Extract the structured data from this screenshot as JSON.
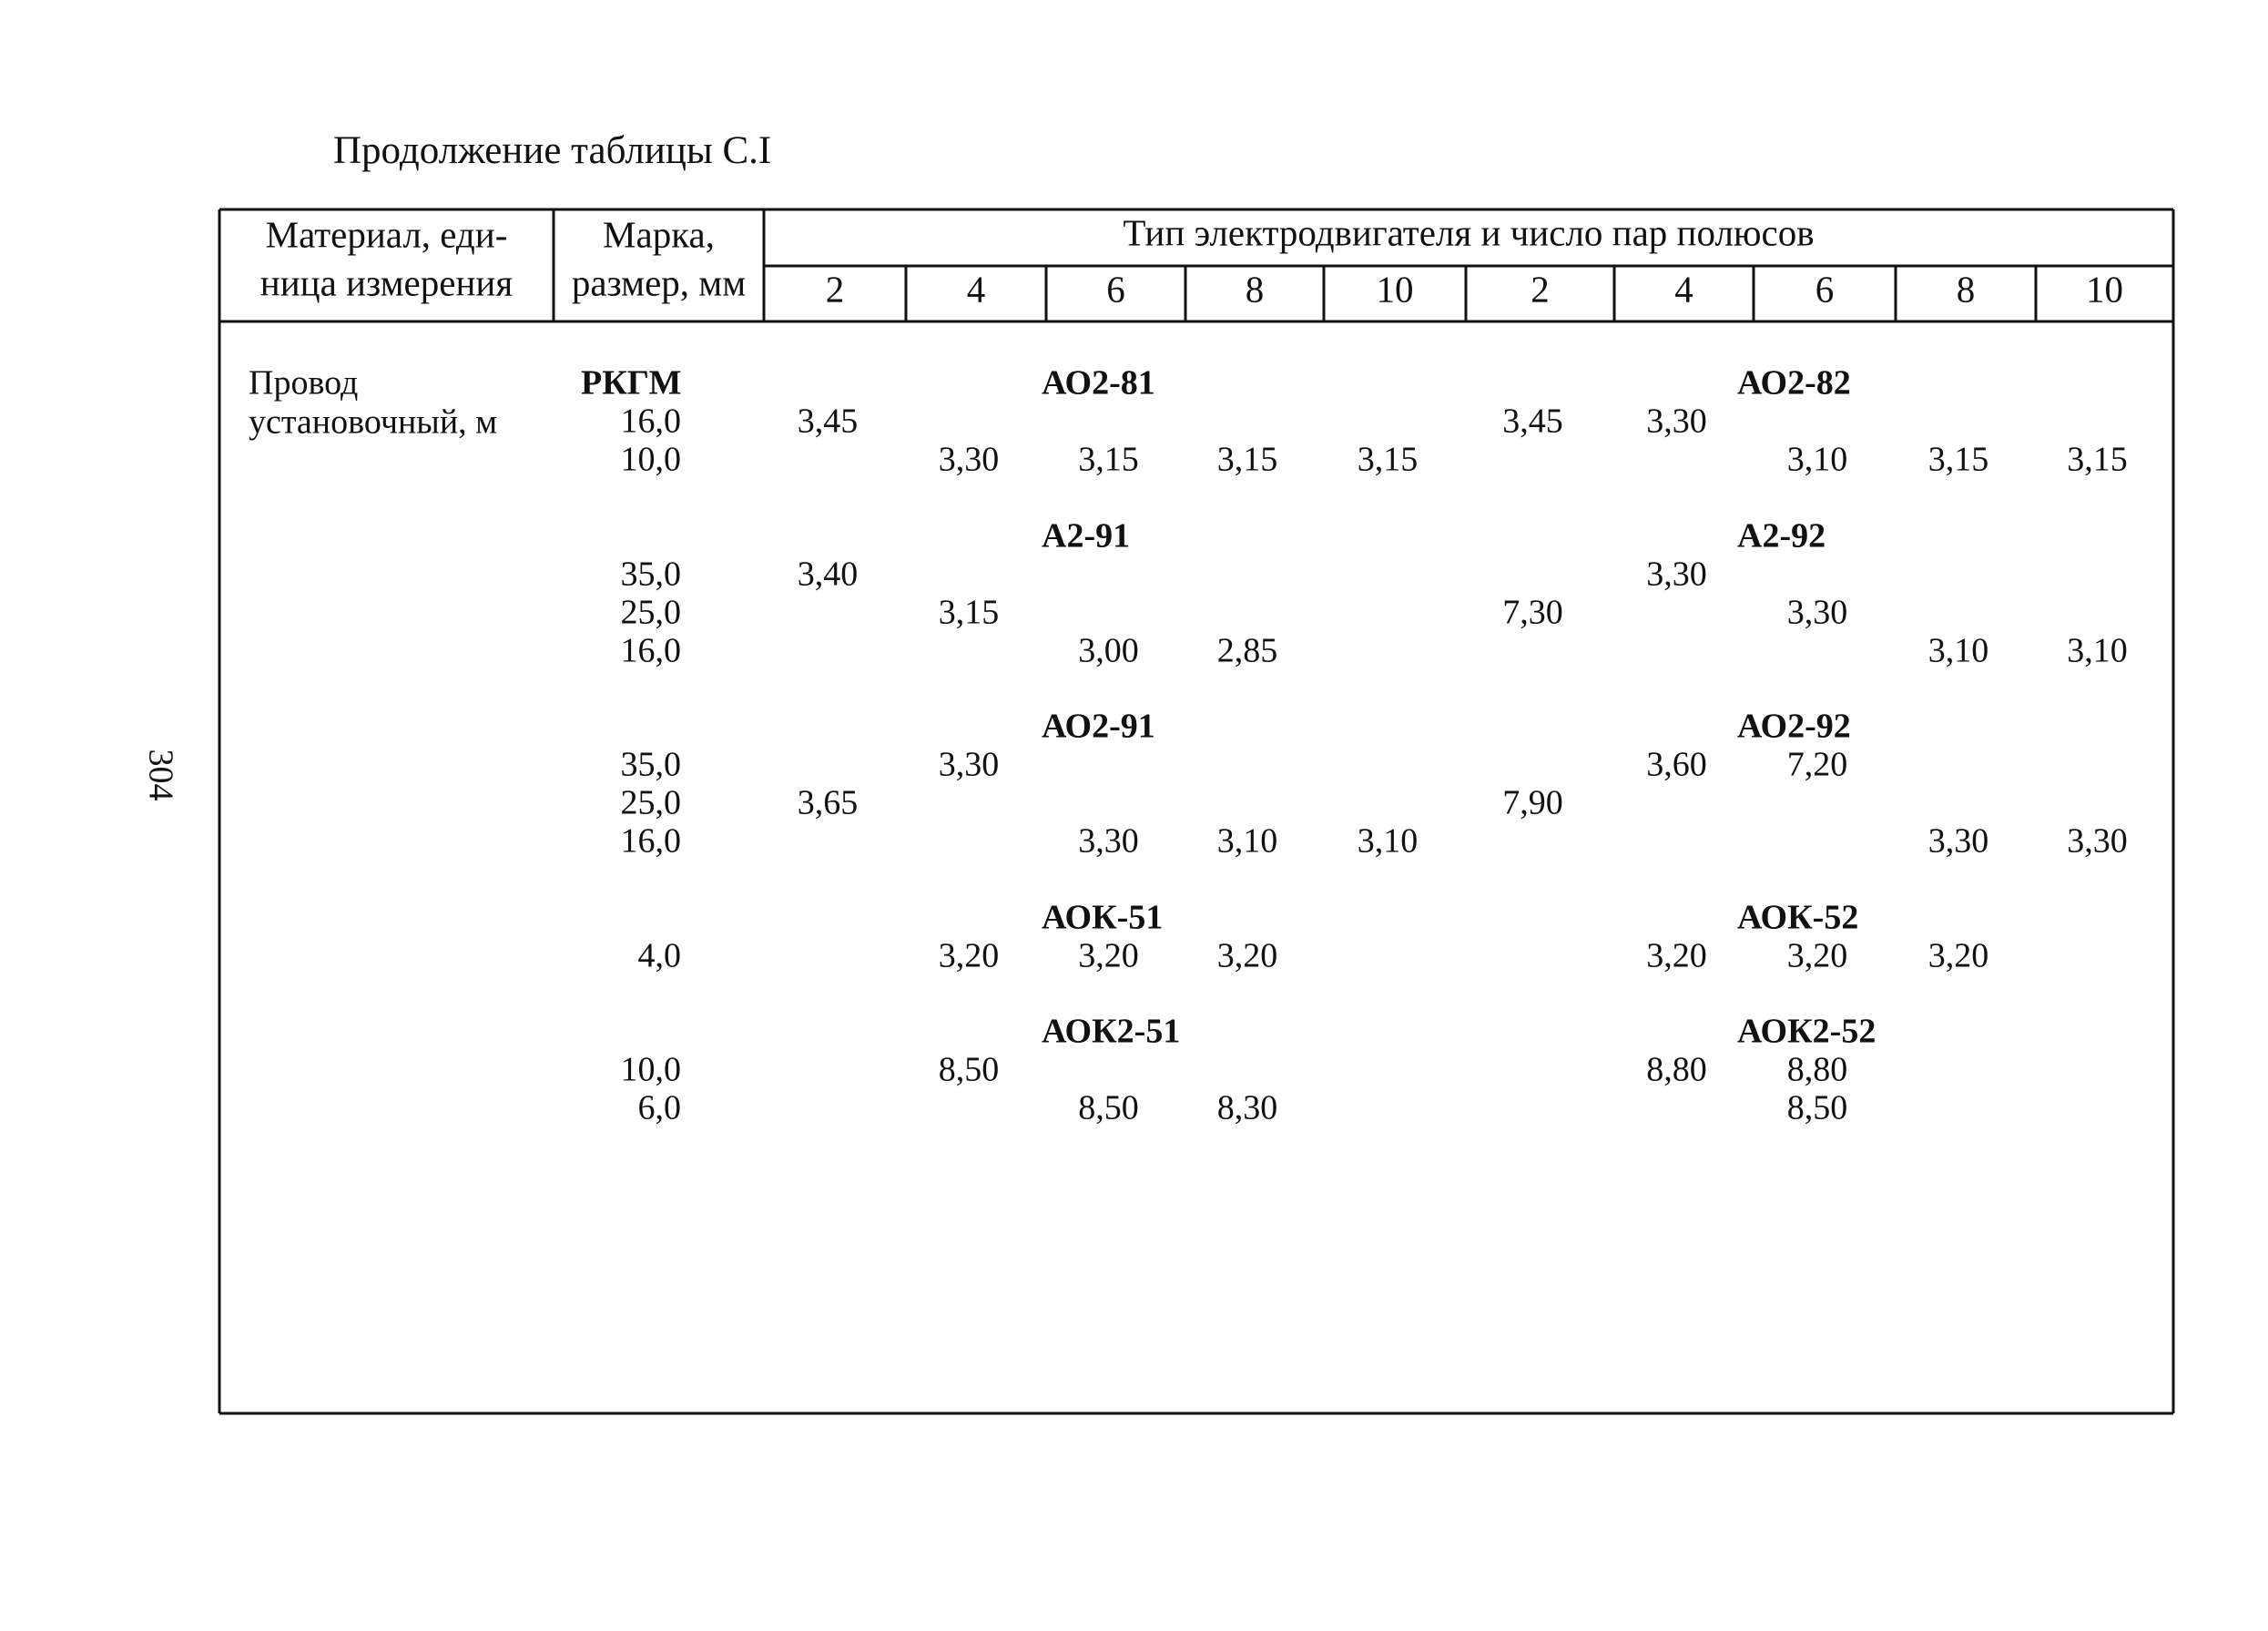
{
  "caption": "Продолжение таблицы С.I",
  "page_number": "304",
  "table": {
    "header": {
      "material": [
        "Материал, еди-",
        "ница измерения"
      ],
      "mark": [
        "Марка,",
        "размер, мм"
      ],
      "motor_type": "Тип электродвигателя и число пар полюсов",
      "poles": [
        "2",
        "4",
        "6",
        "8",
        "10",
        "2",
        "4",
        "6",
        "8",
        "10"
      ]
    },
    "material": [
      "Провод",
      "установочный, м"
    ],
    "groups": [
      {
        "mark": "РКГМ",
        "left_type": "АО2-81",
        "right_type": "АО2-82",
        "rows": [
          {
            "size": "16,0",
            "values": [
              "3,45",
              null,
              null,
              null,
              null,
              "3,45",
              "3,30",
              null,
              null,
              null
            ]
          },
          {
            "size": "10,0",
            "values": [
              null,
              "3,30",
              "3,15",
              "3,15",
              "3,15",
              null,
              null,
              "3,10",
              "3,15",
              "3,15"
            ]
          }
        ]
      },
      {
        "left_type": "А2-91",
        "right_type": "А2-92",
        "rows": [
          {
            "size": "35,0",
            "values": [
              "3,40",
              null,
              null,
              null,
              null,
              null,
              "3,30",
              null,
              null,
              null
            ]
          },
          {
            "size": "25,0",
            "values": [
              null,
              "3,15",
              null,
              null,
              null,
              "7,30",
              null,
              "3,30",
              null,
              null
            ]
          },
          {
            "size": "16,0",
            "values": [
              null,
              null,
              "3,00",
              "2,85",
              null,
              null,
              null,
              null,
              "3,10",
              "3,10"
            ]
          }
        ]
      },
      {
        "left_type": "АО2-91",
        "right_type": "АО2-92",
        "rows": [
          {
            "size": "35,0",
            "values": [
              null,
              "3,30",
              null,
              null,
              null,
              null,
              "3,60",
              "7,20",
              null,
              null
            ]
          },
          {
            "size": "25,0",
            "values": [
              "3,65",
              null,
              null,
              null,
              null,
              "7,90",
              null,
              null,
              null,
              null
            ]
          },
          {
            "size": "16,0",
            "values": [
              null,
              null,
              "3,30",
              "3,10",
              "3,10",
              null,
              null,
              null,
              "3,30",
              "3,30"
            ]
          }
        ]
      },
      {
        "left_type": "АОК-51",
        "right_type": "АОК-52",
        "rows": [
          {
            "size": "4,0",
            "values": [
              null,
              "3,20",
              "3,20",
              "3,20",
              null,
              null,
              "3,20",
              "3,20",
              "3,20",
              null
            ]
          }
        ]
      },
      {
        "left_type": "АОК2-51",
        "right_type": "АОК2-52",
        "rows": [
          {
            "size": "10,0",
            "values": [
              null,
              "8,50",
              null,
              null,
              null,
              null,
              "8,80",
              "8,80",
              null,
              null
            ]
          },
          {
            "size": "6,0",
            "values": [
              null,
              null,
              "8,50",
              "8,30",
              null,
              null,
              null,
              "8,50",
              null,
              null
            ]
          }
        ]
      }
    ]
  }
}
